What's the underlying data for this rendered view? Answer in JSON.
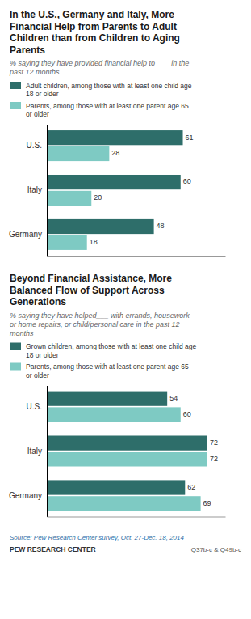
{
  "chart_data": [
    {
      "type": "bar",
      "orientation": "horizontal",
      "title": "In the U.S., Germany and Italy, More\nFinancial Help from Parents to Adult\nChildren than from Children to Aging\nParents",
      "subtitle": "% saying they have provided financial help to ___ in the\npast 12 months",
      "categories": [
        "U.S.",
        "Italy",
        "Germany"
      ],
      "series": [
        {
          "name": "Adult children, among those with at least one child age\n18 or older",
          "color": "#2e6e6a",
          "values": [
            61,
            60,
            48
          ]
        },
        {
          "name": "Parents, among those with at least one parent age 65\nor older",
          "color": "#7ecac3",
          "values": [
            28,
            20,
            18
          ]
        }
      ],
      "xlim": [
        0,
        80
      ],
      "legend": "top",
      "data_labels": true,
      "tick_labels": "y"
    },
    {
      "type": "bar",
      "orientation": "horizontal",
      "title": "Beyond Financial Assistance, More\nBalanced Flow of Support Across\nGenerations",
      "subtitle": "% saying they have helped___ with errands, housework\nor home repairs, or child/personal care in the past 12\nmonths",
      "categories": [
        "U.S.",
        "Italy",
        "Germany"
      ],
      "series": [
        {
          "name": "Grown children, among those with at least one child age\n18 or older",
          "color": "#2e6e6a",
          "values": [
            54,
            72,
            62
          ]
        },
        {
          "name": "Parents, among those with at least one parent age 65\nor older",
          "color": "#7ecac3",
          "values": [
            60,
            72,
            69
          ]
        }
      ],
      "xlim": [
        0,
        80
      ],
      "legend": "top",
      "data_labels": true,
      "tick_labels": "y",
      "annotations": [
        "Source: Pew Research Center survey, Oct. 27-Dec. 18, 2014",
        "PEW RESEARCH CENTER",
        "Q37b-c & Q49b-c"
      ]
    }
  ]
}
